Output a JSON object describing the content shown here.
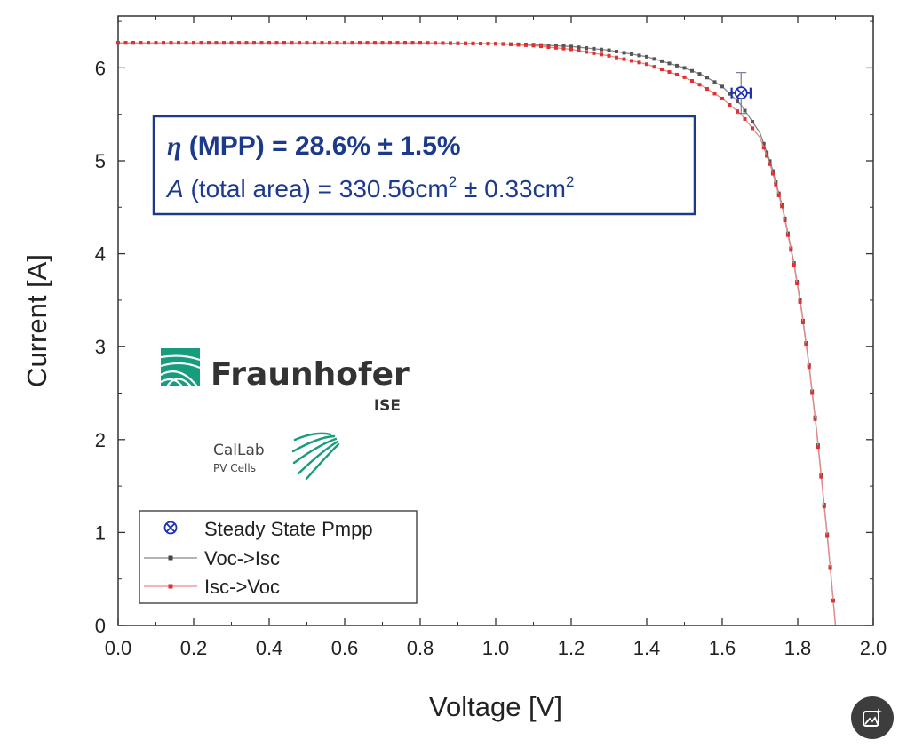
{
  "chart_data": {
    "type": "line",
    "xlabel": "Voltage [V]",
    "ylabel": "Current [A]",
    "xlim": [
      0.0,
      2.0
    ],
    "ylim": [
      0,
      6.5
    ],
    "xticks": [
      "0.0",
      "0.2",
      "0.4",
      "0.6",
      "0.8",
      "1.0",
      "1.2",
      "1.4",
      "1.6",
      "1.8",
      "2.0"
    ],
    "yticks": [
      "0",
      "1",
      "2",
      "3",
      "4",
      "5",
      "6"
    ],
    "grid": false,
    "legend_position": "bottom-left",
    "series": [
      {
        "name": "Voc->Isc",
        "color": "#555555",
        "x": [
          0.0,
          0.2,
          0.4,
          0.6,
          0.8,
          1.0,
          1.1,
          1.2,
          1.3,
          1.4,
          1.5,
          1.55,
          1.6,
          1.65,
          1.7,
          1.73,
          1.76,
          1.79,
          1.81,
          1.83,
          1.85,
          1.87,
          1.88,
          1.89,
          1.9
        ],
        "y": [
          6.27,
          6.27,
          6.27,
          6.27,
          6.27,
          6.26,
          6.25,
          6.23,
          6.19,
          6.12,
          6.0,
          5.92,
          5.8,
          5.6,
          5.3,
          4.95,
          4.5,
          3.9,
          3.4,
          2.8,
          2.1,
          1.3,
          0.9,
          0.45,
          0.0
        ]
      },
      {
        "name": "Isc->Voc",
        "color": "#e03030",
        "x": [
          0.0,
          0.2,
          0.4,
          0.6,
          0.8,
          1.0,
          1.1,
          1.2,
          1.3,
          1.4,
          1.5,
          1.55,
          1.6,
          1.65,
          1.7,
          1.73,
          1.76,
          1.79,
          1.81,
          1.83,
          1.85,
          1.87,
          1.88,
          1.89,
          1.9
        ],
        "y": [
          6.27,
          6.27,
          6.27,
          6.27,
          6.27,
          6.26,
          6.24,
          6.2,
          6.13,
          6.04,
          5.9,
          5.8,
          5.67,
          5.5,
          5.25,
          4.92,
          4.48,
          3.88,
          3.38,
          2.78,
          2.08,
          1.28,
          0.88,
          0.44,
          0.0
        ]
      }
    ],
    "mpp_point": {
      "name": "Steady State Pmpp",
      "x": 1.65,
      "y": 5.73,
      "x_err": 0.025,
      "y_err": 0.22,
      "color": "#1c2fb0"
    },
    "annotation": {
      "eta_symbol": "η",
      "eta_text": " (MPP) = 28.6% ± 1.5%",
      "area_symbol": "A",
      "area_text_1": " (total area) = 330.56cm",
      "area_sup_1": "2",
      "area_text_2": " ± 0.33cm",
      "area_sup_2": "2"
    }
  },
  "logos": {
    "fraunhofer": "Fraunhofer",
    "ise": "ISE",
    "callab": "CalLab",
    "pvcells": "PV Cells"
  },
  "colors": {
    "annotation": "#1c3a8c",
    "fraunhofer_green": "#179c7d"
  },
  "ui": {
    "ai_button_icon": "image-sparkle-icon"
  }
}
